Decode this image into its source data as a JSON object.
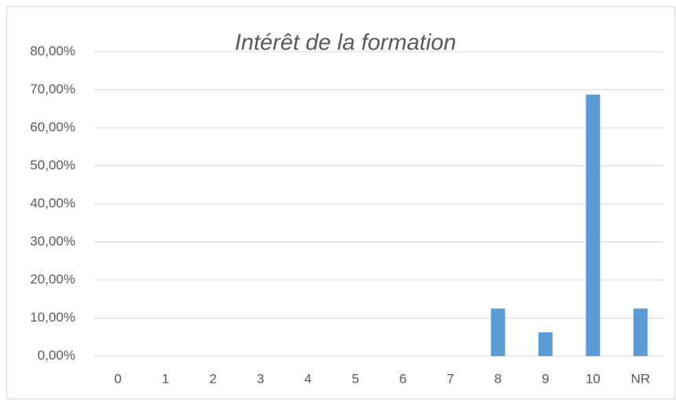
{
  "chart_data": {
    "type": "bar",
    "title": "Intérêt de la formation",
    "categories": [
      "0",
      "1",
      "2",
      "3",
      "4",
      "5",
      "6",
      "7",
      "8",
      "9",
      "10",
      "NR"
    ],
    "values": [
      0,
      0,
      0,
      0,
      0,
      0,
      0,
      0,
      12.5,
      6.25,
      68.75,
      12.5
    ],
    "color": "#5b9bd5",
    "ylim": [
      0,
      80
    ],
    "yticks": [
      {
        "value": 0,
        "label": "0,00%"
      },
      {
        "value": 10,
        "label": "10,00%"
      },
      {
        "value": 20,
        "label": "20,00%"
      },
      {
        "value": 30,
        "label": "30,00%"
      },
      {
        "value": 40,
        "label": "40,00%"
      },
      {
        "value": 50,
        "label": "50,00%"
      },
      {
        "value": 60,
        "label": "60,00%"
      },
      {
        "value": 70,
        "label": "70,00%"
      },
      {
        "value": 80,
        "label": "80,00%"
      }
    ],
    "grid": true
  }
}
